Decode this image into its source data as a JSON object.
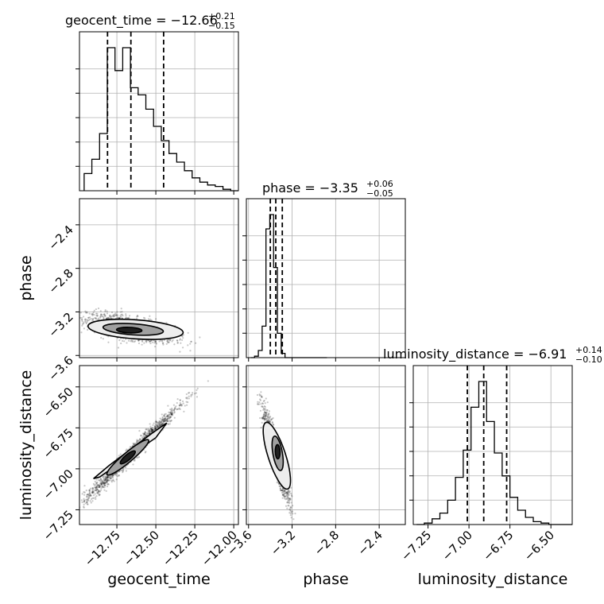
{
  "chart_data": {
    "type": "corner",
    "parameters": [
      "geocent_time",
      "phase",
      "luminosity_distance"
    ],
    "x_axis_labels": {
      "geocent_time": "geocent_time",
      "phase": "phase",
      "luminosity_distance": "luminosity_distance"
    },
    "y_axis_labels": {
      "phase": "phase",
      "luminosity_distance": "luminosity_distance"
    },
    "summaries": {
      "geocent_time": {
        "title": "geocent_time = −12.66",
        "plus": "+0.21",
        "minus": "−0.15",
        "median": -12.66,
        "q_low": -12.81,
        "q_high": -12.45
      },
      "phase": {
        "title": "phase = −3.35",
        "plus": "+0.06",
        "minus": "−0.05",
        "median": -3.35,
        "q_low": -3.4,
        "q_high": -3.29
      },
      "luminosity_distance": {
        "title": "luminosity_distance = −6.91",
        "plus": "+0.14",
        "minus": "−0.10",
        "median": -6.91,
        "q_low": -7.01,
        "q_high": -6.77
      }
    },
    "ranges": {
      "geocent_time": [
        -12.99,
        -11.97
      ],
      "phase": [
        -3.62,
        -2.16
      ],
      "luminosity_distance": [
        -7.34,
        -6.37
      ]
    },
    "ticks": {
      "geocent_time": [
        {
          "v": -12.75,
          "label": "−12.75"
        },
        {
          "v": -12.5,
          "label": "−12.50"
        },
        {
          "v": -12.25,
          "label": "−12.25"
        },
        {
          "v": -12.0,
          "label": "−12.00"
        }
      ],
      "phase": [
        {
          "v": -3.6,
          "label": "−3.6"
        },
        {
          "v": -3.2,
          "label": "−3.2"
        },
        {
          "v": -2.8,
          "label": "−2.8"
        },
        {
          "v": -2.4,
          "label": "−2.4"
        }
      ],
      "luminosity_distance": [
        {
          "v": -7.25,
          "label": "−7.25"
        },
        {
          "v": -7.0,
          "label": "−7.00"
        },
        {
          "v": -6.75,
          "label": "−6.75"
        },
        {
          "v": -6.5,
          "label": "−6.50"
        }
      ]
    },
    "histograms": {
      "geocent_time": [
        0.12,
        0.22,
        0.4,
        1.0,
        0.84,
        1.0,
        0.72,
        0.67,
        0.57,
        0.45,
        0.35,
        0.26,
        0.2,
        0.14,
        0.09,
        0.06,
        0.04,
        0.03,
        0.01,
        0.0
      ],
      "phase": [
        0.0,
        0.01,
        0.05,
        0.22,
        0.9,
        1.0,
        0.63,
        0.17,
        0.03,
        0.0,
        0.0,
        0.0,
        0.0,
        0.0,
        0.0,
        0.0,
        0.0,
        0.0,
        0.0,
        0.0
      ],
      "luminosity_distance": [
        0.0,
        0.01,
        0.04,
        0.08,
        0.17,
        0.33,
        0.52,
        0.82,
        1.0,
        0.72,
        0.5,
        0.34,
        0.19,
        0.1,
        0.05,
        0.02,
        0.01,
        0.0,
        0.0,
        0.0
      ]
    },
    "hist_yticks": [
      0.167,
      0.333,
      0.5,
      0.667,
      0.833
    ],
    "grid": true
  }
}
